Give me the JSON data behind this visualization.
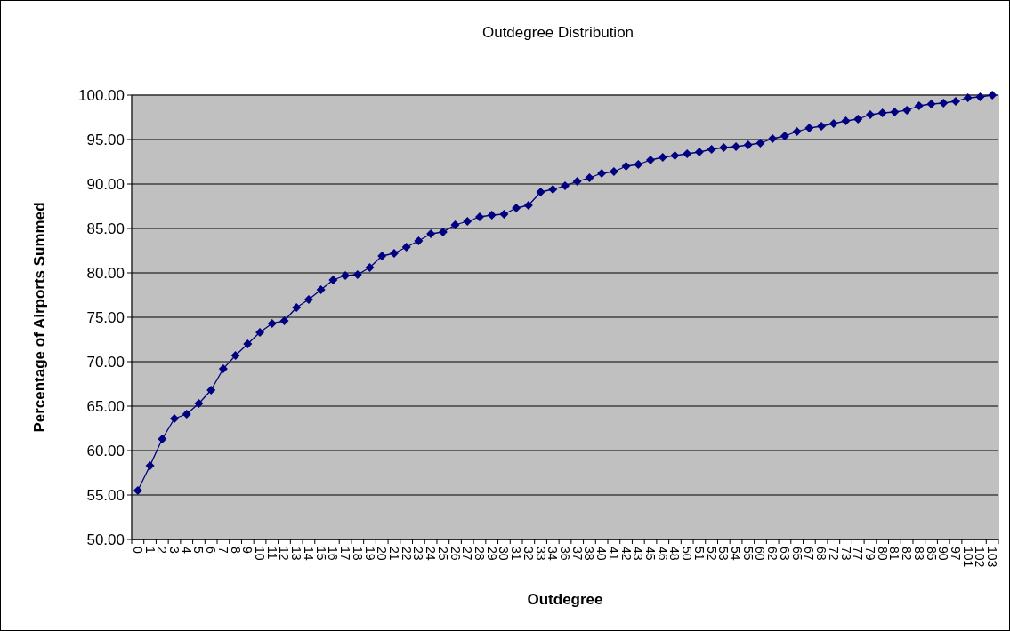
{
  "chart_data": {
    "type": "line",
    "title": "Outdegree Distribution",
    "xlabel": "Outdegree",
    "ylabel": "Percentage of Airports Summed",
    "categories": [
      "0",
      "1",
      "2",
      "3",
      "4",
      "5",
      "6",
      "7",
      "8",
      "9",
      "10",
      "11",
      "12",
      "13",
      "14",
      "15",
      "16",
      "17",
      "18",
      "19",
      "20",
      "21",
      "22",
      "23",
      "24",
      "25",
      "26",
      "27",
      "28",
      "29",
      "30",
      "31",
      "32",
      "33",
      "34",
      "36",
      "37",
      "38",
      "40",
      "41",
      "42",
      "43",
      "45",
      "46",
      "48",
      "50",
      "51",
      "52",
      "53",
      "54",
      "55",
      "60",
      "62",
      "63",
      "65",
      "67",
      "68",
      "72",
      "73",
      "77",
      "79",
      "80",
      "81",
      "82",
      "83",
      "85",
      "90",
      "97",
      "101",
      "102",
      "103"
    ],
    "series": [
      {
        "color": "#000080",
        "values": [
          55.5,
          58.3,
          61.3,
          63.6,
          64.1,
          65.3,
          66.8,
          69.2,
          70.7,
          72.0,
          73.3,
          74.3,
          74.6,
          76.1,
          77.0,
          78.1,
          79.2,
          79.7,
          79.8,
          80.6,
          81.9,
          82.2,
          82.9,
          83.6,
          84.4,
          84.6,
          85.4,
          85.8,
          86.3,
          86.5,
          86.6,
          87.3,
          87.6,
          89.1,
          89.4,
          89.8,
          90.3,
          90.7,
          91.2,
          91.4,
          92.0,
          92.2,
          92.7,
          93.0,
          93.2,
          93.4,
          93.6,
          93.9,
          94.1,
          94.2,
          94.4,
          94.6,
          95.1,
          95.4,
          95.9,
          96.3,
          96.5,
          96.8,
          97.1,
          97.3,
          97.8,
          98.0,
          98.1,
          98.3,
          98.8,
          99.0,
          99.1,
          99.3,
          99.7,
          99.8,
          100.0
        ]
      }
    ],
    "ylim": [
      50,
      100
    ],
    "yticks": [
      {
        "value": 50,
        "label": "50.00"
      },
      {
        "value": 55,
        "label": "55.00"
      },
      {
        "value": 60,
        "label": "60.00"
      },
      {
        "value": 65,
        "label": "65.00"
      },
      {
        "value": 70,
        "label": "70.00"
      },
      {
        "value": 75,
        "label": "75.00"
      },
      {
        "value": 80,
        "label": "80.00"
      },
      {
        "value": 85,
        "label": "85.00"
      },
      {
        "value": 90,
        "label": "90.00"
      },
      {
        "value": 95,
        "label": "95.00"
      },
      {
        "value": 100,
        "label": "100.00"
      }
    ],
    "grid": "y",
    "marker": "diamond",
    "line_style": "solid"
  }
}
